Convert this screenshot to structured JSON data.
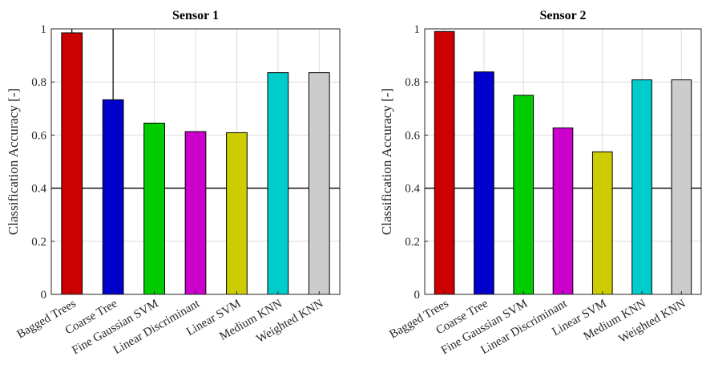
{
  "chart_data": [
    {
      "type": "bar",
      "title": "Sensor 1",
      "xlabel": "",
      "ylabel": "Classification Accuracy [-]",
      "ylim": [
        0,
        1
      ],
      "yticks": [
        "0",
        "0.2",
        "0.4",
        "0.6",
        "0.8",
        "1"
      ],
      "yticks_values": [
        0,
        0.2,
        0.4,
        0.6,
        0.8,
        1
      ],
      "categories": [
        "Bagged Trees",
        "Coarse Tree",
        "Fine Gaussian SVM",
        "Linear Discriminant",
        "Linear SVM",
        "Medium KNN",
        "Weighted KNN"
      ],
      "values": [
        0.985,
        0.733,
        0.645,
        0.613,
        0.609,
        0.835,
        0.835
      ],
      "error_upper": [
        1.0,
        1.0,
        null,
        null,
        null,
        null,
        null
      ],
      "colors": [
        "#cc0000",
        "#0000cc",
        "#00cc00",
        "#cc00cc",
        "#cccc00",
        "#00cccc",
        "#cccccc"
      ],
      "reference_line": 0.4,
      "grid": true
    },
    {
      "type": "bar",
      "title": "Sensor 2",
      "xlabel": "",
      "ylabel": "Classification Accuracy [-]",
      "ylim": [
        0,
        1
      ],
      "yticks": [
        "0",
        "0.2",
        "0.4",
        "0.6",
        "0.8",
        "1"
      ],
      "yticks_values": [
        0,
        0.2,
        0.4,
        0.6,
        0.8,
        1
      ],
      "categories": [
        "Bagged Trees",
        "Coarse Tree",
        "Fine Gaussian SVM",
        "Linear Discriminant",
        "Linear SVM",
        "Medium KNN",
        "Weighted KNN"
      ],
      "values": [
        0.99,
        0.838,
        0.75,
        0.627,
        0.537,
        0.808,
        0.808
      ],
      "error_upper": [
        null,
        null,
        null,
        null,
        null,
        null,
        null
      ],
      "colors": [
        "#cc0000",
        "#0000cc",
        "#00cc00",
        "#cc00cc",
        "#cccc00",
        "#00cccc",
        "#cccccc"
      ],
      "reference_line": 0.4,
      "grid": true
    }
  ]
}
